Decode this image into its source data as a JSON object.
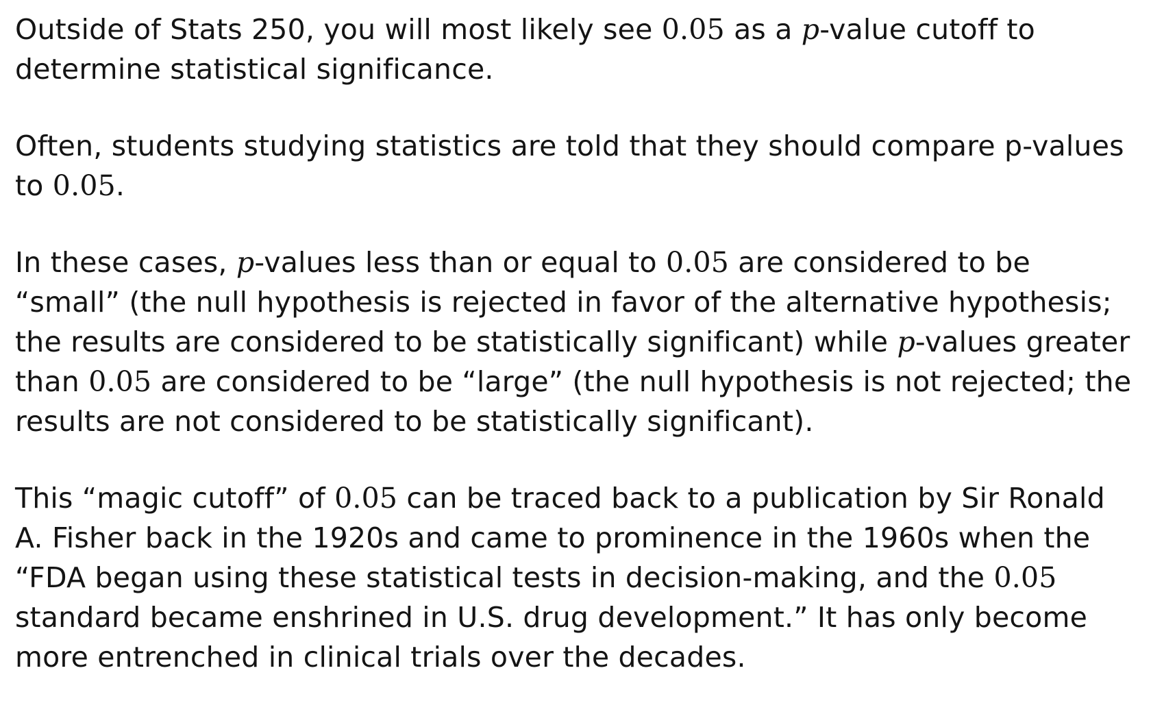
{
  "paragraphs": [
    {
      "segments": [
        {
          "text": "Outside of Stats 250, you will most likely see ",
          "style": "text"
        },
        {
          "text": "0.05",
          "style": "math"
        },
        {
          "text": " as a ",
          "style": "text"
        },
        {
          "text": "p",
          "style": "math-it"
        },
        {
          "text": "-value cutoff to determine statistical significance.",
          "style": "text"
        }
      ]
    },
    {
      "segments": [
        {
          "text": "Often, students studying statistics are told that they should compare p-values to ",
          "style": "text"
        },
        {
          "text": "0.05",
          "style": "math"
        },
        {
          "text": ".",
          "style": "text"
        }
      ]
    },
    {
      "segments": [
        {
          "text": "In these cases, ",
          "style": "text"
        },
        {
          "text": "p",
          "style": "math-it"
        },
        {
          "text": "-values less than or equal to ",
          "style": "text"
        },
        {
          "text": "0.05",
          "style": "math"
        },
        {
          "text": " are considered to be “small” (the null hypothesis is rejected in favor of the alternative hypothesis; the results are considered to be statistically significant) while ",
          "style": "text"
        },
        {
          "text": "p",
          "style": "math-it"
        },
        {
          "text": "-values greater than ",
          "style": "text"
        },
        {
          "text": "0.05",
          "style": "math"
        },
        {
          "text": " are considered to be “large” (the null hypothesis is not rejected; the results are not considered to be statistically significant).",
          "style": "text"
        }
      ]
    },
    {
      "segments": [
        {
          "text": "This “magic cutoff” of ",
          "style": "text"
        },
        {
          "text": "0.05",
          "style": "math"
        },
        {
          "text": " can be traced back to a publication by Sir Ronald A. Fisher back in the 1920s and came to prominence in the 1960s when the “FDA began using these statistical tests in decision-making, and the ",
          "style": "text"
        },
        {
          "text": "0.05",
          "style": "math"
        },
        {
          "text": " standard became enshrined in U.S. drug development.” It has only become more entrenched in clinical trials over the decades.",
          "style": "text"
        }
      ]
    }
  ]
}
